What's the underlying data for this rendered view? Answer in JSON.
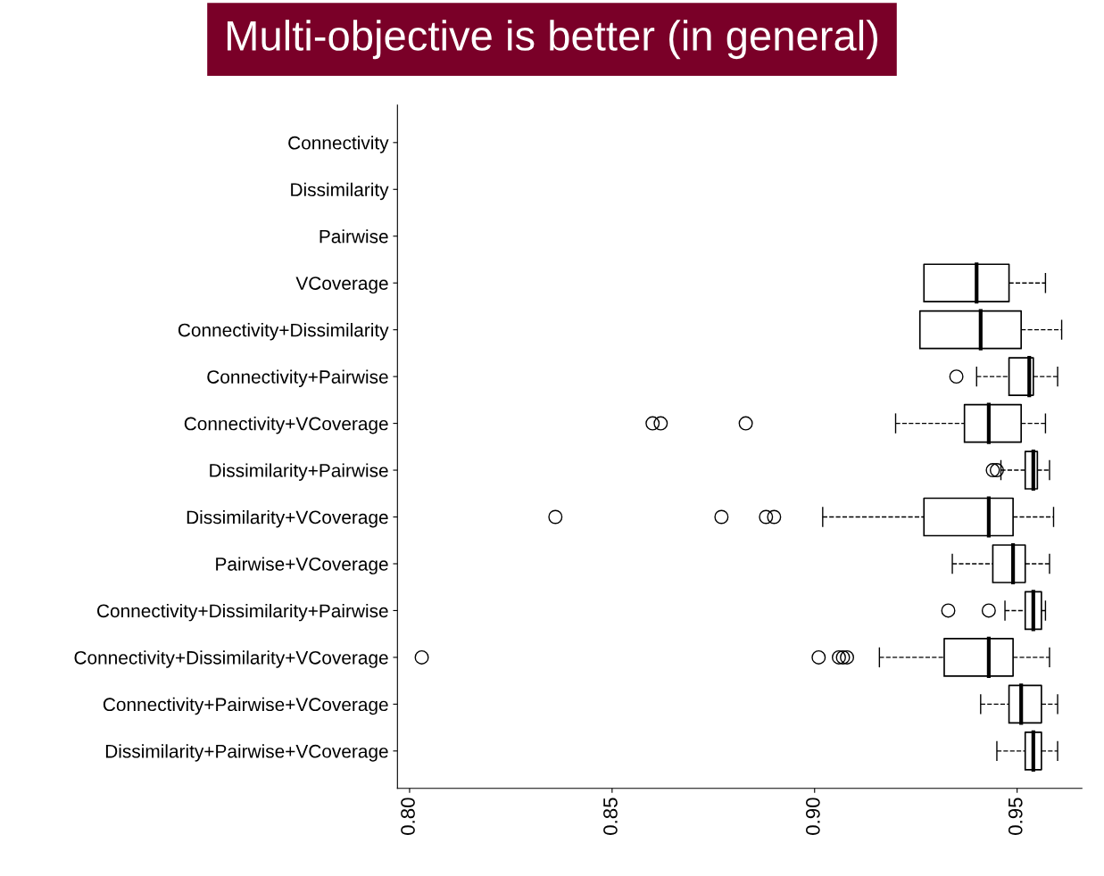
{
  "chart_data": {
    "type": "box",
    "orientation": "horizontal",
    "annotations": [
      "Multi-objective is better (in general)"
    ],
    "categories": [
      "Connectivity",
      "Dissimilarity",
      "Pairwise",
      "VCoverage",
      "Connectivity+Dissimilarity",
      "Connectivity+Pairwise",
      "Connectivity+VCoverage",
      "Dissimilarity+Pairwise",
      "Dissimilarity+VCoverage",
      "Pairwise+VCoverage",
      "Connectivity+Dissimilarity+Pairwise",
      "Connectivity+Dissimilarity+VCoverage",
      "Connectivity+Pairwise+VCoverage",
      "Dissimilarity+Pairwise+VCoverage"
    ],
    "boxes": [
      {
        "low": null,
        "q1": null,
        "median": null,
        "q3": null,
        "high": null
      },
      {
        "low": null,
        "q1": null,
        "median": null,
        "q3": null,
        "high": null
      },
      {
        "low": null,
        "q1": null,
        "median": null,
        "q3": null,
        "high": null
      },
      {
        "low": null,
        "q1": 0.927,
        "median": 0.94,
        "q3": 0.948,
        "high": 0.957
      },
      {
        "low": null,
        "q1": 0.926,
        "median": 0.941,
        "q3": 0.951,
        "high": 0.961
      },
      {
        "low": 0.94,
        "q1": 0.948,
        "median": 0.953,
        "q3": 0.954,
        "high": 0.96,
        "outliers": [
          0.935
        ]
      },
      {
        "low": 0.92,
        "q1": 0.937,
        "median": 0.943,
        "q3": 0.951,
        "high": 0.957,
        "outliers": [
          0.86,
          0.862,
          0.883
        ]
      },
      {
        "low": 0.946,
        "q1": 0.952,
        "median": 0.954,
        "q3": 0.955,
        "high": 0.958,
        "outliers": [
          0.944,
          0.945
        ]
      },
      {
        "low": 0.902,
        "q1": 0.927,
        "median": 0.943,
        "q3": 0.949,
        "high": 0.959,
        "outliers": [
          0.836,
          0.877,
          0.888,
          0.89
        ]
      },
      {
        "low": 0.934,
        "q1": 0.944,
        "median": 0.949,
        "q3": 0.952,
        "high": 0.958
      },
      {
        "low": 0.947,
        "q1": 0.952,
        "median": 0.954,
        "q3": 0.956,
        "high": 0.957,
        "outliers": [
          0.933,
          0.943
        ]
      },
      {
        "low": 0.916,
        "q1": 0.932,
        "median": 0.943,
        "q3": 0.949,
        "high": 0.958,
        "outliers": [
          0.803,
          0.901,
          0.906,
          0.907,
          0.908
        ]
      },
      {
        "low": 0.941,
        "q1": 0.948,
        "median": 0.951,
        "q3": 0.956,
        "high": 0.96
      },
      {
        "low": 0.945,
        "q1": 0.952,
        "median": 0.954,
        "q3": 0.956,
        "high": 0.96
      }
    ],
    "xlim": [
      0.797,
      0.966
    ],
    "xticks": [
      {
        "value": 0.8,
        "label": "0.80"
      },
      {
        "value": 0.85,
        "label": "0.85"
      },
      {
        "value": 0.9,
        "label": "0.90"
      },
      {
        "value": 0.95,
        "label": "0.95"
      }
    ],
    "grid": false
  }
}
